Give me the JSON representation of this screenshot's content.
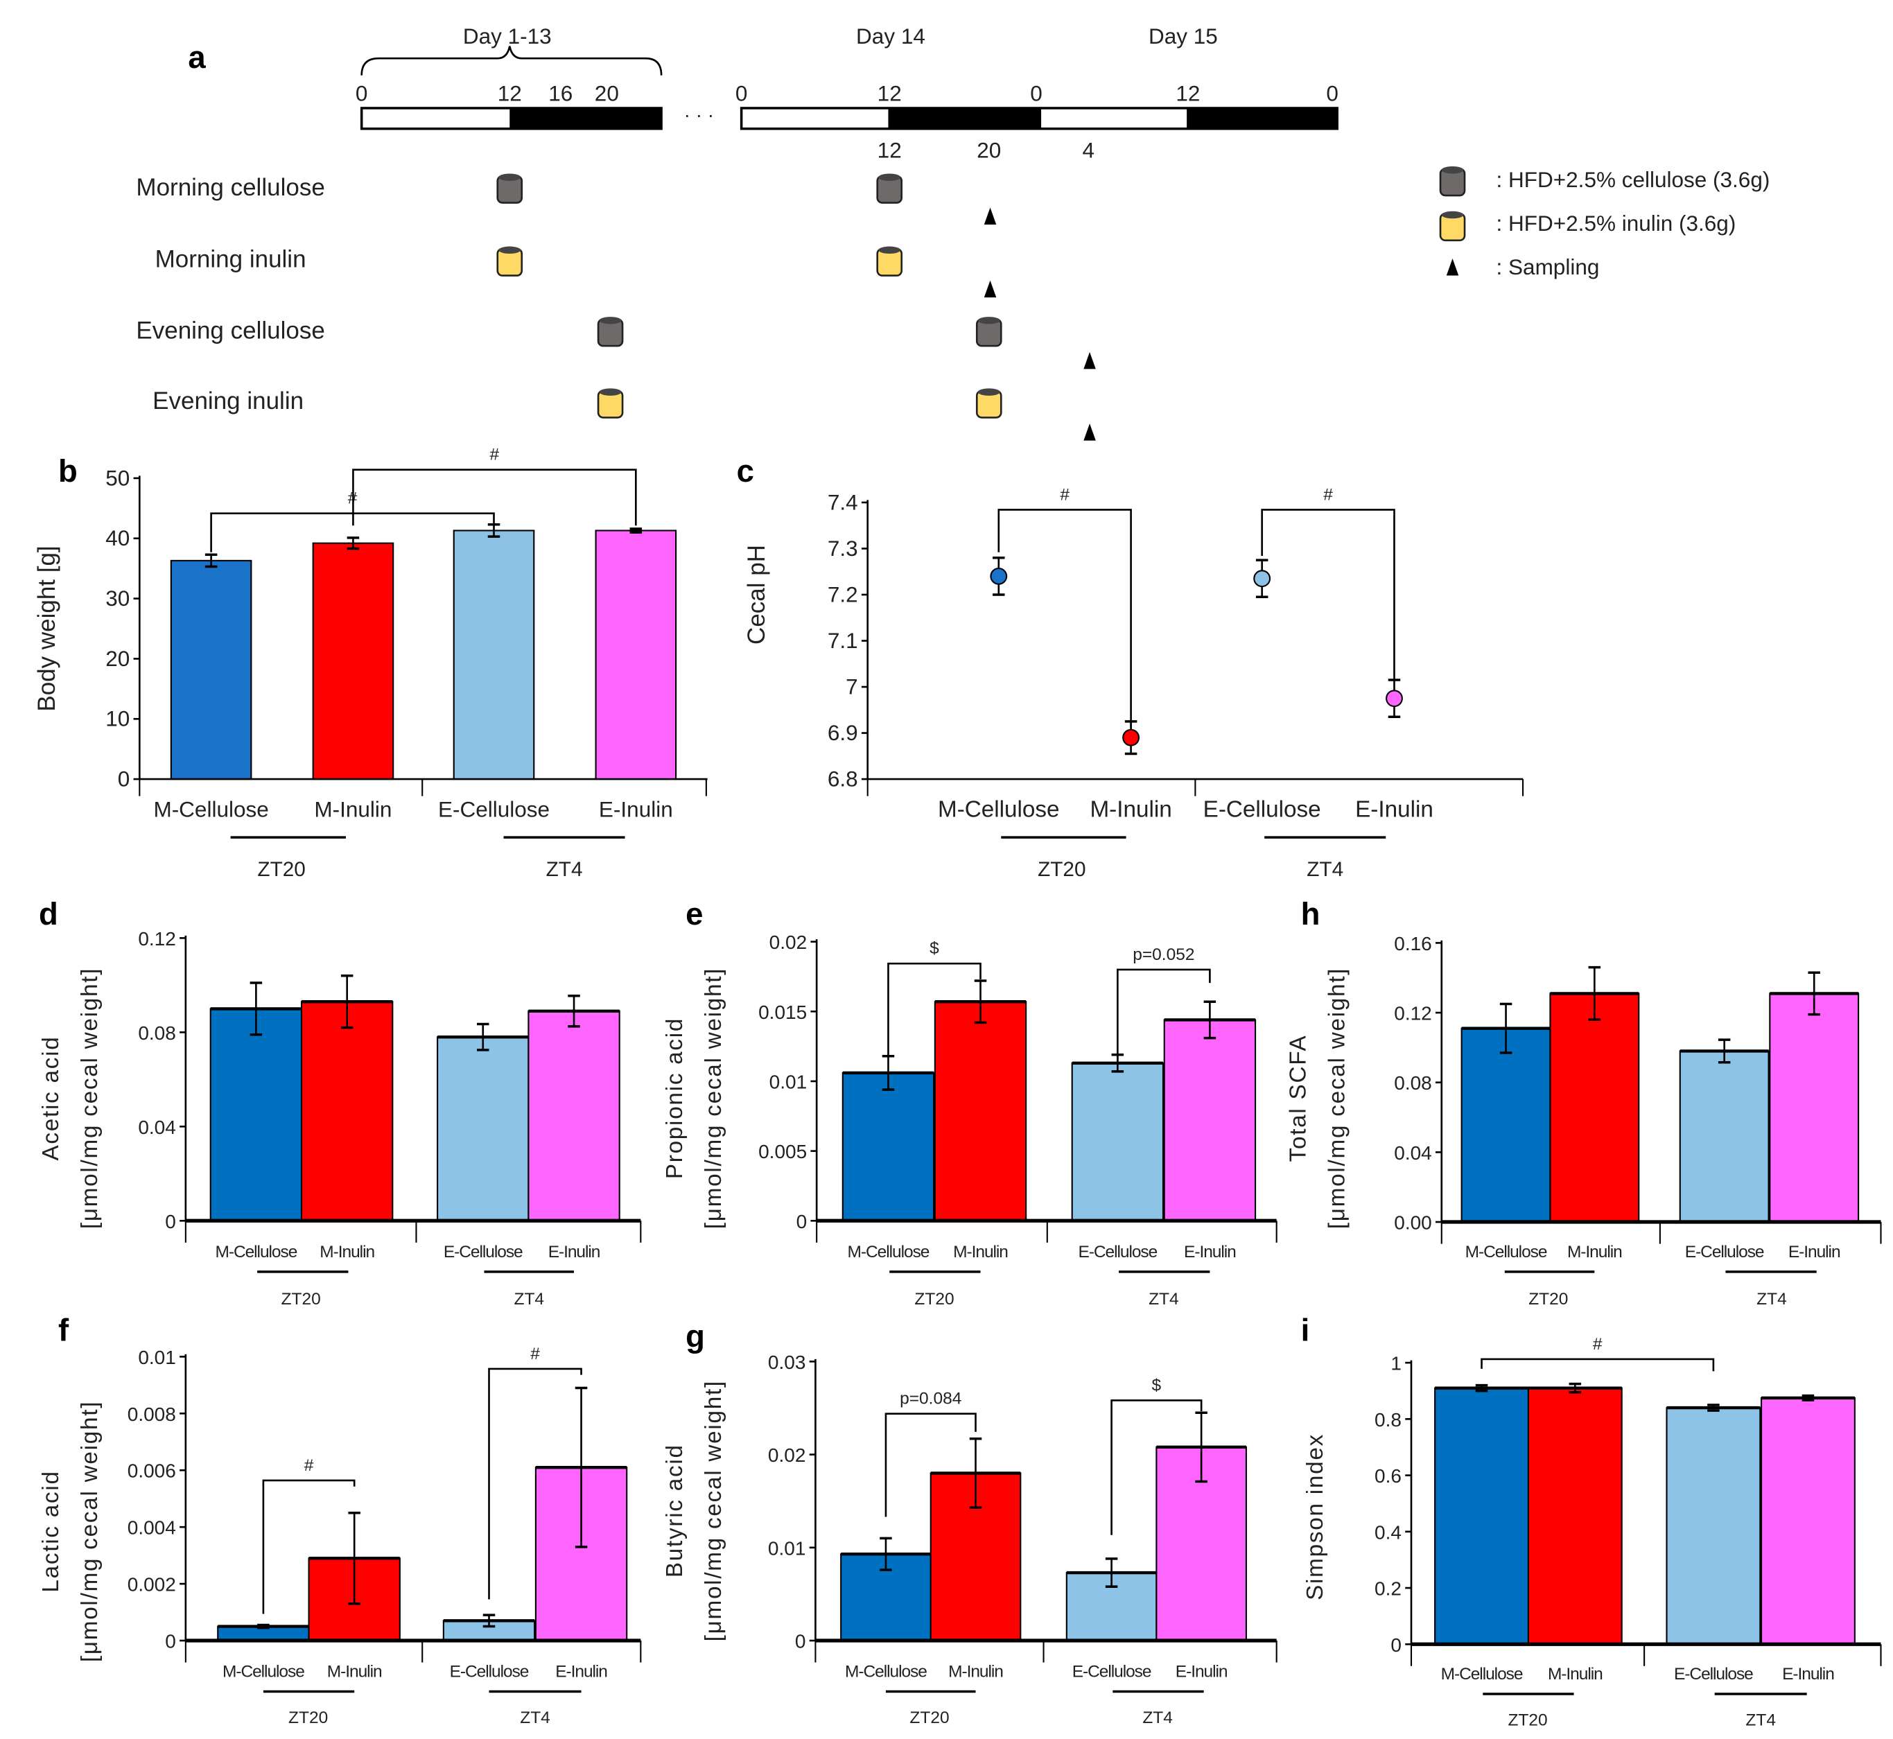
{
  "panel_a": {
    "letter": "a",
    "days": [
      "Day 1-13",
      "Day 14",
      "Day 15"
    ],
    "top_ticks_1": [
      "0",
      "12",
      "16",
      "20"
    ],
    "top_ticks_2": [
      "0",
      "12",
      "0",
      "12",
      "0"
    ],
    "bottom_ticks": [
      "12",
      "20",
      "4"
    ],
    "dots": "· · ·",
    "rows": [
      "Morning cellulose",
      "Morning inulin",
      "Evening cellulose",
      "Evening inulin"
    ],
    "legend": [
      ": HFD+2.5% cellulose (3.6g)",
      ": HFD+2.5% inulin (3.6g)",
      ": Sampling"
    ],
    "colors": {
      "cellulose": "#6e6a6a",
      "inulin": "#ffd966"
    }
  },
  "chart_data": [
    {
      "id": "b",
      "letter": "b",
      "type": "bar",
      "ylabel": [
        "Body weight [g]"
      ],
      "ylim": [
        0,
        50
      ],
      "ticks": [
        "0",
        "10",
        "20",
        "30",
        "40",
        "50"
      ],
      "categories": [
        "M-Cellulose",
        "M-Inulin",
        "E-Cellulose",
        "E-Inulin"
      ],
      "groups": [
        "ZT20",
        "ZT4"
      ],
      "values": [
        36.3,
        39.2,
        41.3,
        41.3
      ],
      "errors": [
        1.0,
        0.9,
        1.0,
        0.3
      ],
      "colors": [
        "#1a73c9",
        "#ff0000",
        "#8ec1e6",
        "#ff66ff"
      ],
      "significance": [
        {
          "from": 0,
          "to": 2,
          "label": "#"
        },
        {
          "from": 1,
          "to": 3,
          "label": "#"
        }
      ]
    },
    {
      "id": "c",
      "letter": "c",
      "type": "scatter",
      "ylabel": [
        "Cecal pH"
      ],
      "ylim": [
        6.8,
        7.4
      ],
      "ticks": [
        "6.8",
        "6.9",
        "7",
        "7.1",
        "7.2",
        "7.3",
        "7.4"
      ],
      "categories": [
        "M-Cellulose",
        "M-Inulin",
        "E-Cellulose",
        "E-Inulin"
      ],
      "groups": [
        "ZT20",
        "ZT4"
      ],
      "values": [
        7.24,
        6.89,
        7.235,
        6.975
      ],
      "errors": [
        0.04,
        0.035,
        0.04,
        0.04
      ],
      "colors": [
        "#1a73c9",
        "#ff0000",
        "#8ec1e6",
        "#ff66ff"
      ],
      "significance": [
        {
          "from": 0,
          "to": 1,
          "label": "#"
        },
        {
          "from": 2,
          "to": 3,
          "label": "#"
        }
      ]
    },
    {
      "id": "d",
      "letter": "d",
      "type": "bar",
      "ylabel": [
        "Acetic acid",
        "[μmol/mg cecal weight]"
      ],
      "ylim": [
        0,
        0.12
      ],
      "ticks": [
        "0",
        "0.04",
        "0.08",
        "0.12"
      ],
      "categories": [
        "M-Cellulose",
        "M-Inulin",
        "E-Cellulose",
        "E-Inulin"
      ],
      "groups": [
        "ZT20",
        "ZT4"
      ],
      "values": [
        0.09,
        0.093,
        0.078,
        0.089
      ],
      "errors": [
        0.011,
        0.011,
        0.0055,
        0.0065
      ],
      "colors": [
        "#0070c0",
        "#ff0000",
        "#8dc3e6",
        "#ff66ff"
      ],
      "significance": []
    },
    {
      "id": "e",
      "letter": "e",
      "type": "bar",
      "ylabel": [
        "Propionic acid",
        "[μmol/mg cecal weight]"
      ],
      "ylim": [
        0,
        0.02
      ],
      "ticks": [
        "0",
        "0.005",
        "0.01",
        "0.015",
        "0.02"
      ],
      "categories": [
        "M-Cellulose",
        "M-Inulin",
        "E-Cellulose",
        "E-Inulin"
      ],
      "groups": [
        "ZT20",
        "ZT4"
      ],
      "values": [
        0.0106,
        0.0157,
        0.0113,
        0.0144
      ],
      "errors": [
        0.0012,
        0.0015,
        0.0006,
        0.0013
      ],
      "colors": [
        "#0070c0",
        "#ff0000",
        "#8dc3e6",
        "#ff66ff"
      ],
      "significance": [
        {
          "from": 0,
          "to": 1,
          "label": "$"
        },
        {
          "from": 2,
          "to": 3,
          "label": "p=0.052"
        }
      ]
    },
    {
      "id": "h",
      "letter": "h",
      "type": "bar",
      "ylabel": [
        "Total SCFA",
        "[μmol/mg cecal weight]"
      ],
      "ylim": [
        0,
        0.16
      ],
      "ticks": [
        "0.00",
        "0.04",
        "0.08",
        "0.12",
        "0.16"
      ],
      "categories": [
        "M-Cellulose",
        "M-Inulin",
        "E-Cellulose",
        "E-Inulin"
      ],
      "groups": [
        "ZT20",
        "ZT4"
      ],
      "values": [
        0.111,
        0.131,
        0.098,
        0.131
      ],
      "errors": [
        0.014,
        0.015,
        0.0065,
        0.012
      ],
      "colors": [
        "#0070c0",
        "#ff0000",
        "#8dc3e6",
        "#ff66ff"
      ],
      "significance": []
    },
    {
      "id": "f",
      "letter": "f",
      "type": "bar",
      "ylabel": [
        "Lactic acid",
        "[μmol/mg cecal weight]"
      ],
      "ylim": [
        0,
        0.01
      ],
      "ticks": [
        "0",
        "0.002",
        "0.004",
        "0.006",
        "0.008",
        "0.01"
      ],
      "categories": [
        "M-Cellulose",
        "M-Inulin",
        "E-Cellulose",
        "E-Inulin"
      ],
      "groups": [
        "ZT20",
        "ZT4"
      ],
      "values": [
        0.0005,
        0.0029,
        0.0007,
        0.0061
      ],
      "errors": [
        5e-05,
        0.0016,
        0.0002,
        0.0028
      ],
      "colors": [
        "#0070c0",
        "#ff0000",
        "#8dc3e6",
        "#ff66ff"
      ],
      "significance": [
        {
          "from": 0,
          "to": 1,
          "label": "#"
        },
        {
          "from": 2,
          "to": 3,
          "label": "#"
        }
      ]
    },
    {
      "id": "g",
      "letter": "g",
      "type": "bar",
      "ylabel": [
        "Butyric acid",
        "[μmol/mg cecal weight]"
      ],
      "ylim": [
        0,
        0.03
      ],
      "ticks": [
        "0",
        "0.01",
        "0.02",
        "0.03"
      ],
      "categories": [
        "M-Cellulose",
        "M-Inulin",
        "E-Cellulose",
        "E-Inulin"
      ],
      "groups": [
        "ZT20",
        "ZT4"
      ],
      "values": [
        0.0093,
        0.018,
        0.0073,
        0.0208
      ],
      "errors": [
        0.0017,
        0.0037,
        0.0015,
        0.0037
      ],
      "colors": [
        "#0070c0",
        "#ff0000",
        "#8dc3e6",
        "#ff66ff"
      ],
      "significance": [
        {
          "from": 0,
          "to": 1,
          "label": "p=0.084"
        },
        {
          "from": 2,
          "to": 3,
          "label": "$"
        }
      ]
    },
    {
      "id": "i",
      "letter": "i",
      "type": "bar",
      "ylabel": [
        "Simpson index"
      ],
      "ylim": [
        0,
        1
      ],
      "ticks": [
        "0",
        "0.2",
        "0.4",
        "0.6",
        "0.8",
        "1"
      ],
      "categories": [
        "M-Cellulose",
        "M-Inulin",
        "E-Cellulose",
        "E-Inulin"
      ],
      "groups": [
        "ZT20",
        "ZT4"
      ],
      "values": [
        0.91,
        0.91,
        0.84,
        0.875
      ],
      "errors": [
        0.01,
        0.015,
        0.01,
        0.008
      ],
      "colors": [
        "#0070c0",
        "#ff0000",
        "#8dc3e6",
        "#ff66ff"
      ],
      "significance": [
        {
          "from": 0,
          "to": 2,
          "label": "#"
        }
      ]
    }
  ]
}
